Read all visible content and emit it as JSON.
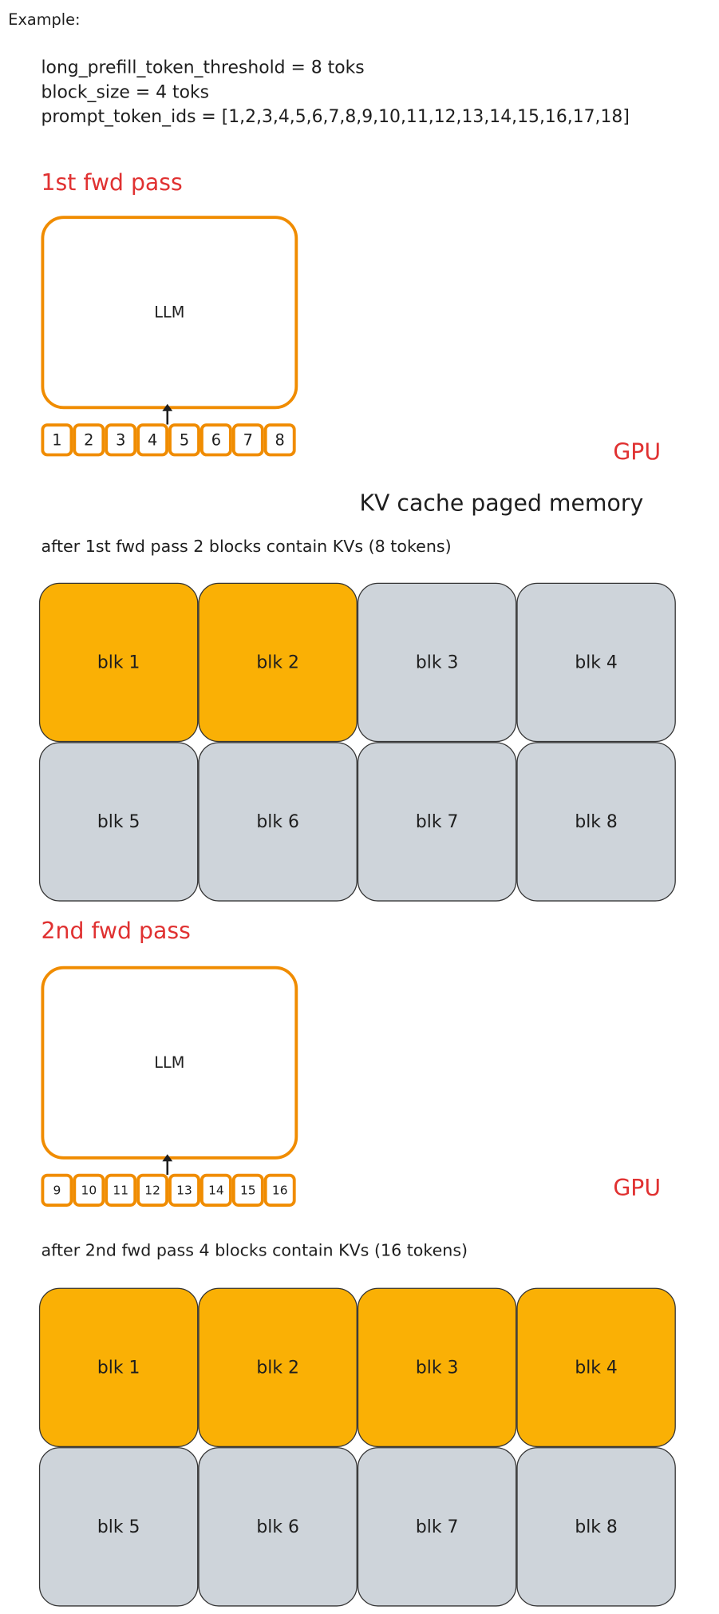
{
  "intro": "Example:",
  "params": [
    "long_prefill_token_threshold = 8 toks",
    "block_size = 4 toks",
    "prompt_token_ids = [1,2,3,4,5,6,7,8,9,10,11,12,13,14,15,16,17,18]"
  ],
  "colors": {
    "llm_border": "#f08c00",
    "filled_block": "#fab005",
    "empty_block": "#ced4da",
    "heading": "#e03131"
  },
  "memory_label": "KV cache paged memory",
  "passes": [
    {
      "title": "1st fwd pass",
      "model_label": "LLM",
      "tokens": [
        "1",
        "2",
        "3",
        "4",
        "5",
        "6",
        "7",
        "8"
      ],
      "device_label": "GPU",
      "caption": "after 1st fwd pass 2 blocks contain KVs (8 tokens)",
      "blocks": [
        {
          "label": "blk 1",
          "filled": true
        },
        {
          "label": "blk 2",
          "filled": true
        },
        {
          "label": "blk 3",
          "filled": false
        },
        {
          "label": "blk 4",
          "filled": false
        },
        {
          "label": "blk 5",
          "filled": false
        },
        {
          "label": "blk 6",
          "filled": false
        },
        {
          "label": "blk 7",
          "filled": false
        },
        {
          "label": "blk 8",
          "filled": false
        }
      ]
    },
    {
      "title": "2nd fwd pass",
      "model_label": "LLM",
      "tokens": [
        "9",
        "10",
        "11",
        "12",
        "13",
        "14",
        "15",
        "16"
      ],
      "device_label": "GPU",
      "caption": "after 2nd fwd pass 4 blocks contain KVs (16 tokens)",
      "blocks": [
        {
          "label": "blk 1",
          "filled": true
        },
        {
          "label": "blk 2",
          "filled": true
        },
        {
          "label": "blk 3",
          "filled": true
        },
        {
          "label": "blk 4",
          "filled": true
        },
        {
          "label": "blk 5",
          "filled": false
        },
        {
          "label": "blk 6",
          "filled": false
        },
        {
          "label": "blk 7",
          "filled": false
        },
        {
          "label": "blk 8",
          "filled": false
        }
      ]
    }
  ]
}
